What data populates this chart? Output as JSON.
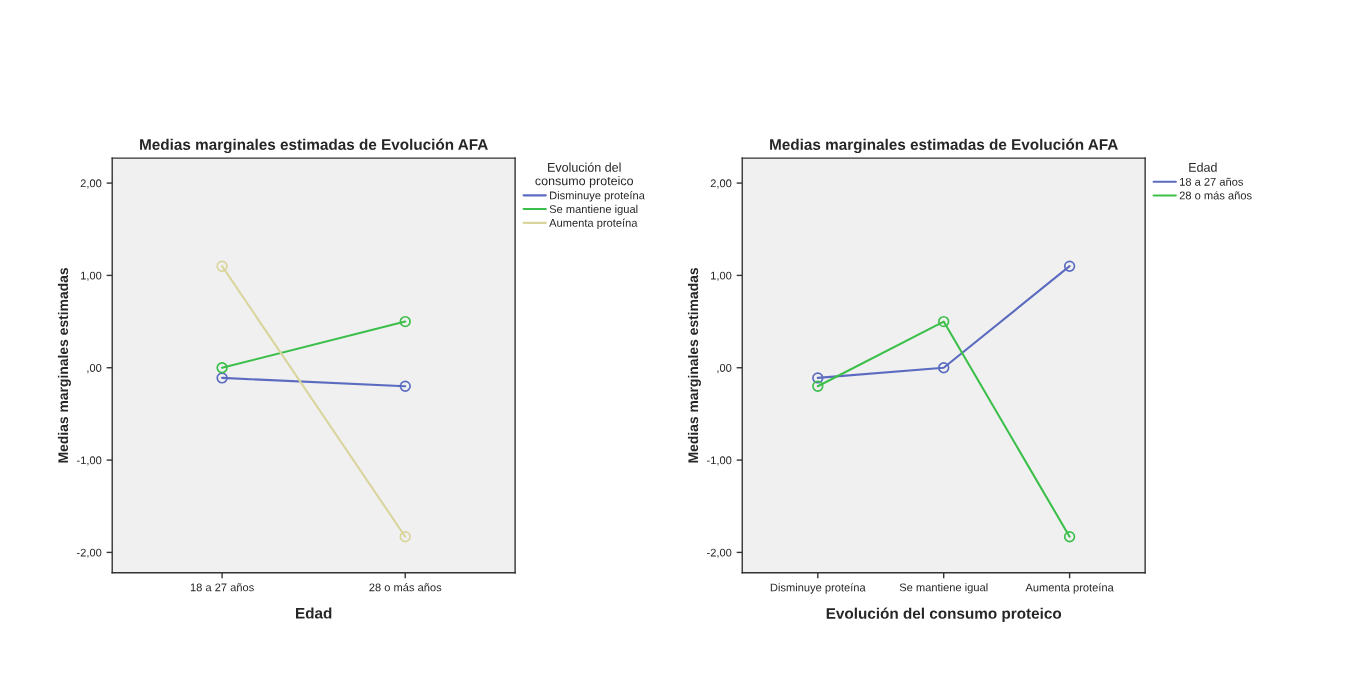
{
  "chart_data": [
    {
      "type": "line",
      "title": "Medias marginales estimadas de Evolución AFA",
      "xlabel": "Edad",
      "ylabel": "Medias marginales estimadas",
      "legend_title": "Evolución del\nconsumo proteico",
      "categories": [
        "18 a 27 años",
        "28 o más años"
      ],
      "series": [
        {
          "name": "Disminuye proteína",
          "color": "#5b6cc0",
          "values": [
            -0.11,
            -0.2
          ]
        },
        {
          "name": "Se mantiene igual",
          "color": "#3cbf4a",
          "values": [
            0.0,
            0.5
          ]
        },
        {
          "name": "Aumenta proteína",
          "color": "#d9d59c",
          "values": [
            1.1,
            -1.83
          ]
        }
      ],
      "ylim": [
        -2.22,
        2.27
      ],
      "yticks": [
        {
          "value": -2,
          "label": "-2,00"
        },
        {
          "value": -1,
          "label": "-1,00"
        },
        {
          "value": 0,
          "label": ",00"
        },
        {
          "value": 1,
          "label": "1,00"
        },
        {
          "value": 2,
          "label": "2,00"
        }
      ],
      "marker": "circle",
      "legend": "top right",
      "grid": false
    },
    {
      "type": "line",
      "title": "Medias marginales estimadas de Evolución AFA",
      "xlabel": "Evolución del consumo proteico",
      "ylabel": "Medias marginales estimadas",
      "legend_title": "Edad",
      "categories": [
        "Disminuye proteína",
        "Se mantiene igual",
        "Aumenta proteína"
      ],
      "series": [
        {
          "name": "18 a 27 años",
          "color": "#5b6cc0",
          "values": [
            -0.11,
            0.0,
            1.1
          ]
        },
        {
          "name": "28 o más años",
          "color": "#3cbf4a",
          "values": [
            -0.2,
            0.5,
            -1.83
          ]
        }
      ],
      "ylim": [
        -2.22,
        2.27
      ],
      "yticks": [
        {
          "value": -2,
          "label": "-2,00"
        },
        {
          "value": -1,
          "label": "-1,00"
        },
        {
          "value": 0,
          "label": ",00"
        },
        {
          "value": 1,
          "label": "1,00"
        },
        {
          "value": 2,
          "label": "2,00"
        }
      ],
      "marker": "circle",
      "legend": "top right",
      "grid": false
    }
  ]
}
